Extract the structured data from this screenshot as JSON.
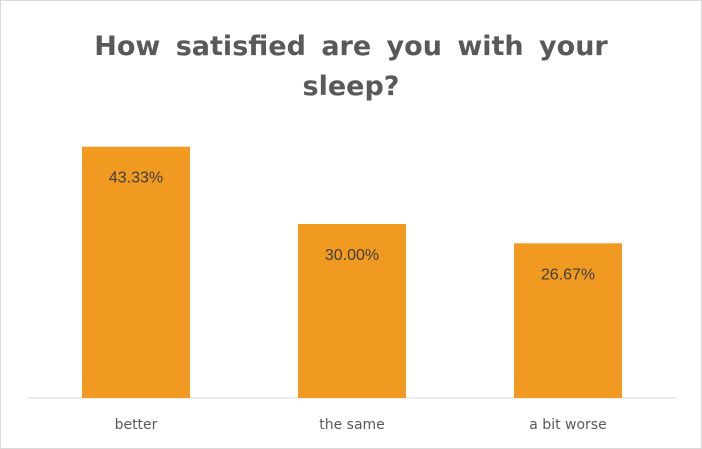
{
  "chart_data": {
    "type": "bar",
    "title": "How satisfied are you with your sleep?",
    "categories": [
      "better",
      "the same",
      "a bit worse"
    ],
    "values": [
      43.33,
      30.0,
      26.67
    ],
    "data_labels": [
      "43.33%",
      "30.00%",
      "26.67%"
    ],
    "xlabel": "",
    "ylabel": "",
    "ylim": [
      0,
      50
    ],
    "grid": false,
    "legend": "none",
    "bar_color": "#f09a22",
    "axis_color": "#d9d9d9"
  }
}
